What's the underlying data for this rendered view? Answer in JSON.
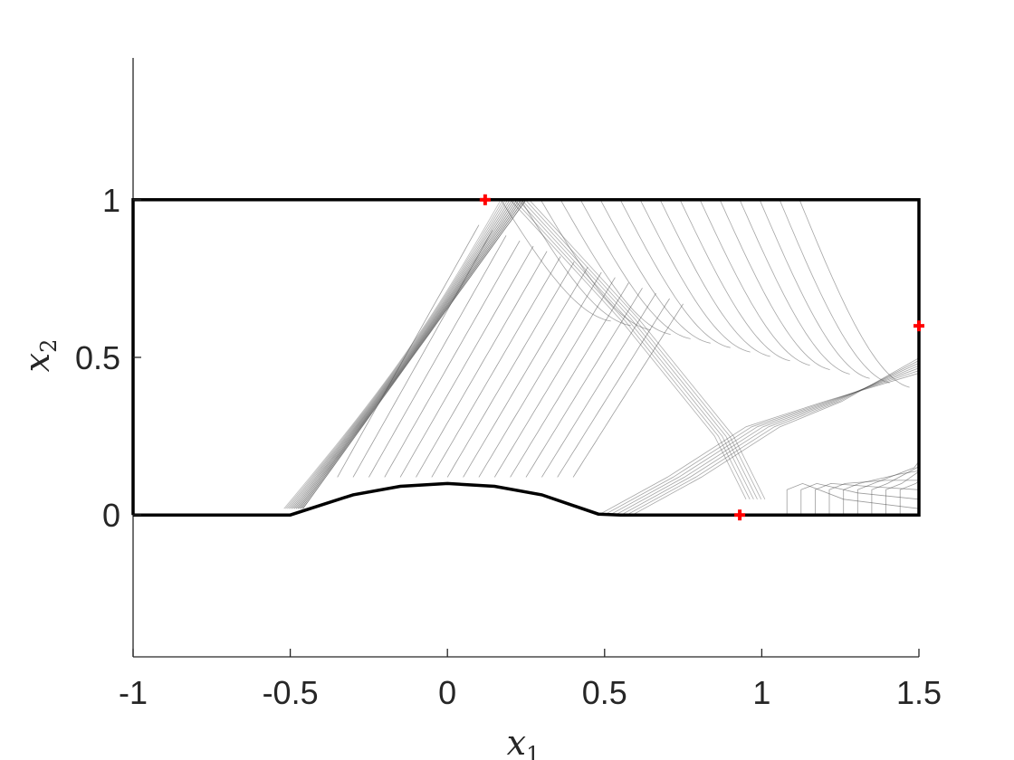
{
  "chart_data": {
    "type": "contour",
    "title": "",
    "xlabel": "x",
    "xlabel_subscript": "1",
    "ylabel": "x",
    "ylabel_subscript": "2",
    "xlim": [
      -1,
      1.5
    ],
    "ylim": [
      -0.45,
      1.45
    ],
    "x_ticks": [
      {
        "value": -1,
        "label": "-1"
      },
      {
        "value": -0.5,
        "label": "-0.5"
      },
      {
        "value": 0,
        "label": "0"
      },
      {
        "value": 0.5,
        "label": "0.5"
      },
      {
        "value": 1,
        "label": "1"
      },
      {
        "value": 1.5,
        "label": "1.5"
      }
    ],
    "y_ticks": [
      {
        "value": 0,
        "label": "0"
      },
      {
        "value": 0.5,
        "label": "0.5"
      },
      {
        "value": 1,
        "label": "1"
      }
    ],
    "grid": false,
    "domain_outline": {
      "color": "#000000",
      "points": [
        [
          -1,
          0
        ],
        [
          -0.55,
          0
        ],
        [
          -0.5,
          0.0
        ],
        [
          -0.3,
          0.064
        ],
        [
          -0.15,
          0.091
        ],
        [
          0,
          0.1
        ],
        [
          0.15,
          0.091
        ],
        [
          0.3,
          0.064
        ],
        [
          0.48,
          0.003
        ],
        [
          0.55,
          0
        ],
        [
          1.5,
          0
        ],
        [
          1.5,
          1
        ],
        [
          -1,
          1
        ],
        [
          -1,
          0
        ]
      ]
    },
    "markers": {
      "color": "#ff0000",
      "symbol": "+",
      "points": [
        {
          "x": 0.12,
          "y": 1.0
        },
        {
          "x": 1.5,
          "y": 0.6
        },
        {
          "x": 0.93,
          "y": 0.0
        }
      ]
    },
    "contour_color": "#4d4d4d"
  }
}
